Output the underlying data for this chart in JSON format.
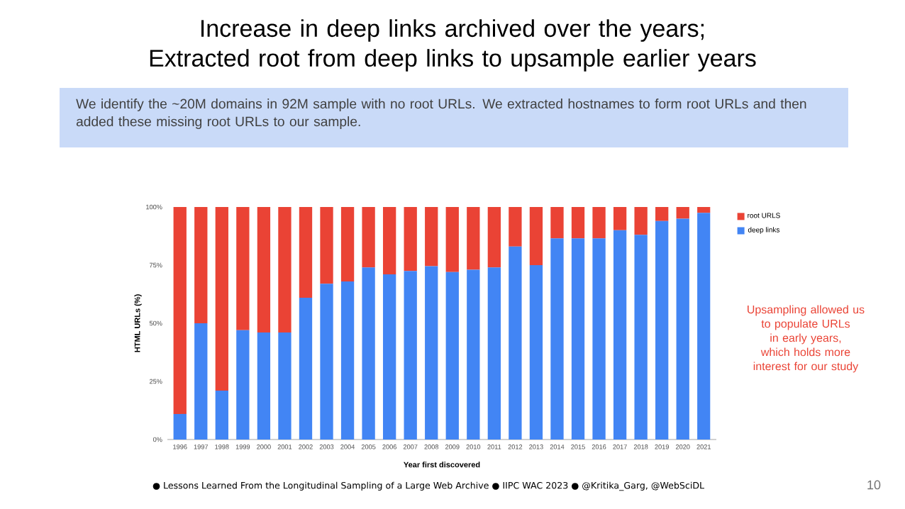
{
  "chart_data": {
    "type": "bar",
    "stacked": true,
    "title": "Increase in deep links archived over the years; Extracted root from deep links to upsample earlier years",
    "subtitle": "We identify the ~20M domains in 92M sample with no root URLs. We extracted hostnames to form root URLs and then added these missing root URLs to our sample.",
    "xlabel": "Year first discovered",
    "ylabel": "HTML URLs (%)",
    "categories": [
      "1996",
      "1997",
      "1998",
      "1999",
      "2000",
      "2001",
      "2002",
      "2003",
      "2004",
      "2005",
      "2006",
      "2007",
      "2008",
      "2009",
      "2010",
      "2011",
      "2012",
      "2013",
      "2014",
      "2015",
      "2016",
      "2017",
      "2018",
      "2019",
      "2020",
      "2021"
    ],
    "series": [
      {
        "name": "deep links",
        "color": "#4285f4",
        "values": [
          11,
          50,
          21,
          47,
          46,
          46,
          61,
          67,
          68,
          74,
          71,
          72.5,
          74.5,
          72,
          73,
          74,
          83,
          75,
          86.5,
          86.5,
          86.5,
          90,
          88,
          94,
          95,
          97.5
        ]
      },
      {
        "name": "root URLS",
        "color": "#ea4335",
        "values": [
          89,
          50,
          79,
          53,
          54,
          54,
          39,
          33,
          32,
          26,
          29,
          27.5,
          25.5,
          28,
          27,
          26,
          17,
          25,
          13.5,
          13.5,
          13.5,
          10,
          12,
          6,
          5,
          2.5
        ]
      }
    ],
    "ylim": [
      0,
      100
    ],
    "yticks": [
      {
        "value": 0,
        "label": "0%"
      },
      {
        "value": 25,
        "label": "25%"
      },
      {
        "value": 50,
        "label": "50%"
      },
      {
        "value": 75,
        "label": "75%"
      },
      {
        "value": 100,
        "label": "100%"
      }
    ],
    "legend": "top right",
    "grid": false,
    "annotations": [
      "Upsampling allowed us to populate URLs in early years, which holds more interest for our study",
      "● Lessons Learned From the Longitudinal Sampling of a Large Web Archive ● IIPC WAC 2023 ● @Kritika_Garg, @WebSciDL",
      "10"
    ]
  }
}
